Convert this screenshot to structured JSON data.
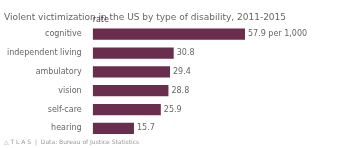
{
  "chart_data": {
    "type": "bar",
    "orientation": "horizontal",
    "title": "Violent victimization in the US by type of disability, 2011-2015",
    "xlabel": "rate",
    "annotations": [
      "△ T L A S  |  Data: Bureau of Justice Statistics"
    ],
    "categories": [
      "hearing",
      "self-care",
      "vision",
      "ambulatory",
      "independent living",
      "cognitive"
    ],
    "values": [
      15.7,
      25.9,
      28.8,
      29.4,
      30.8,
      57.9
    ],
    "value_labels": [
      "15.7",
      "25.9",
      "28.8",
      "29.4",
      "30.8",
      "57.9 per 1,000"
    ],
    "data_labels": true,
    "color": "#6b2d4e",
    "xlim": [
      0,
      75
    ],
    "grid": false,
    "tick_labels": "y"
  }
}
